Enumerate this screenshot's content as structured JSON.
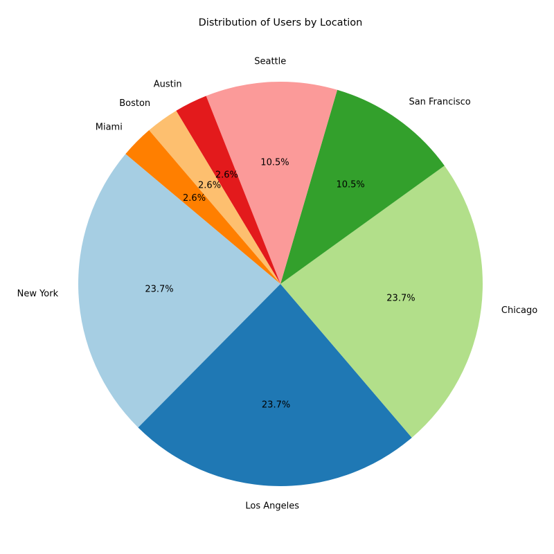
{
  "chart_data": {
    "type": "pie",
    "title": "Distribution of Users by Location",
    "categories": [
      "New York",
      "Los Angeles",
      "Chicago",
      "San Francisco",
      "Seattle",
      "Austin",
      "Boston",
      "Miami"
    ],
    "values": [
      9,
      9,
      9,
      4,
      4,
      1,
      1,
      1
    ],
    "percent_labels": [
      "23.7%",
      "23.7%",
      "23.7%",
      "10.5%",
      "10.5%",
      "2.6%",
      "2.6%",
      "2.6%"
    ],
    "colors": [
      "#a6cee3",
      "#1f78b4",
      "#b2df8a",
      "#33a02c",
      "#fb9a99",
      "#e31a1c",
      "#fdbf6f",
      "#ff7f00"
    ],
    "start_angle_degrees": 140,
    "direction": "counterclockwise",
    "legend": "none"
  }
}
